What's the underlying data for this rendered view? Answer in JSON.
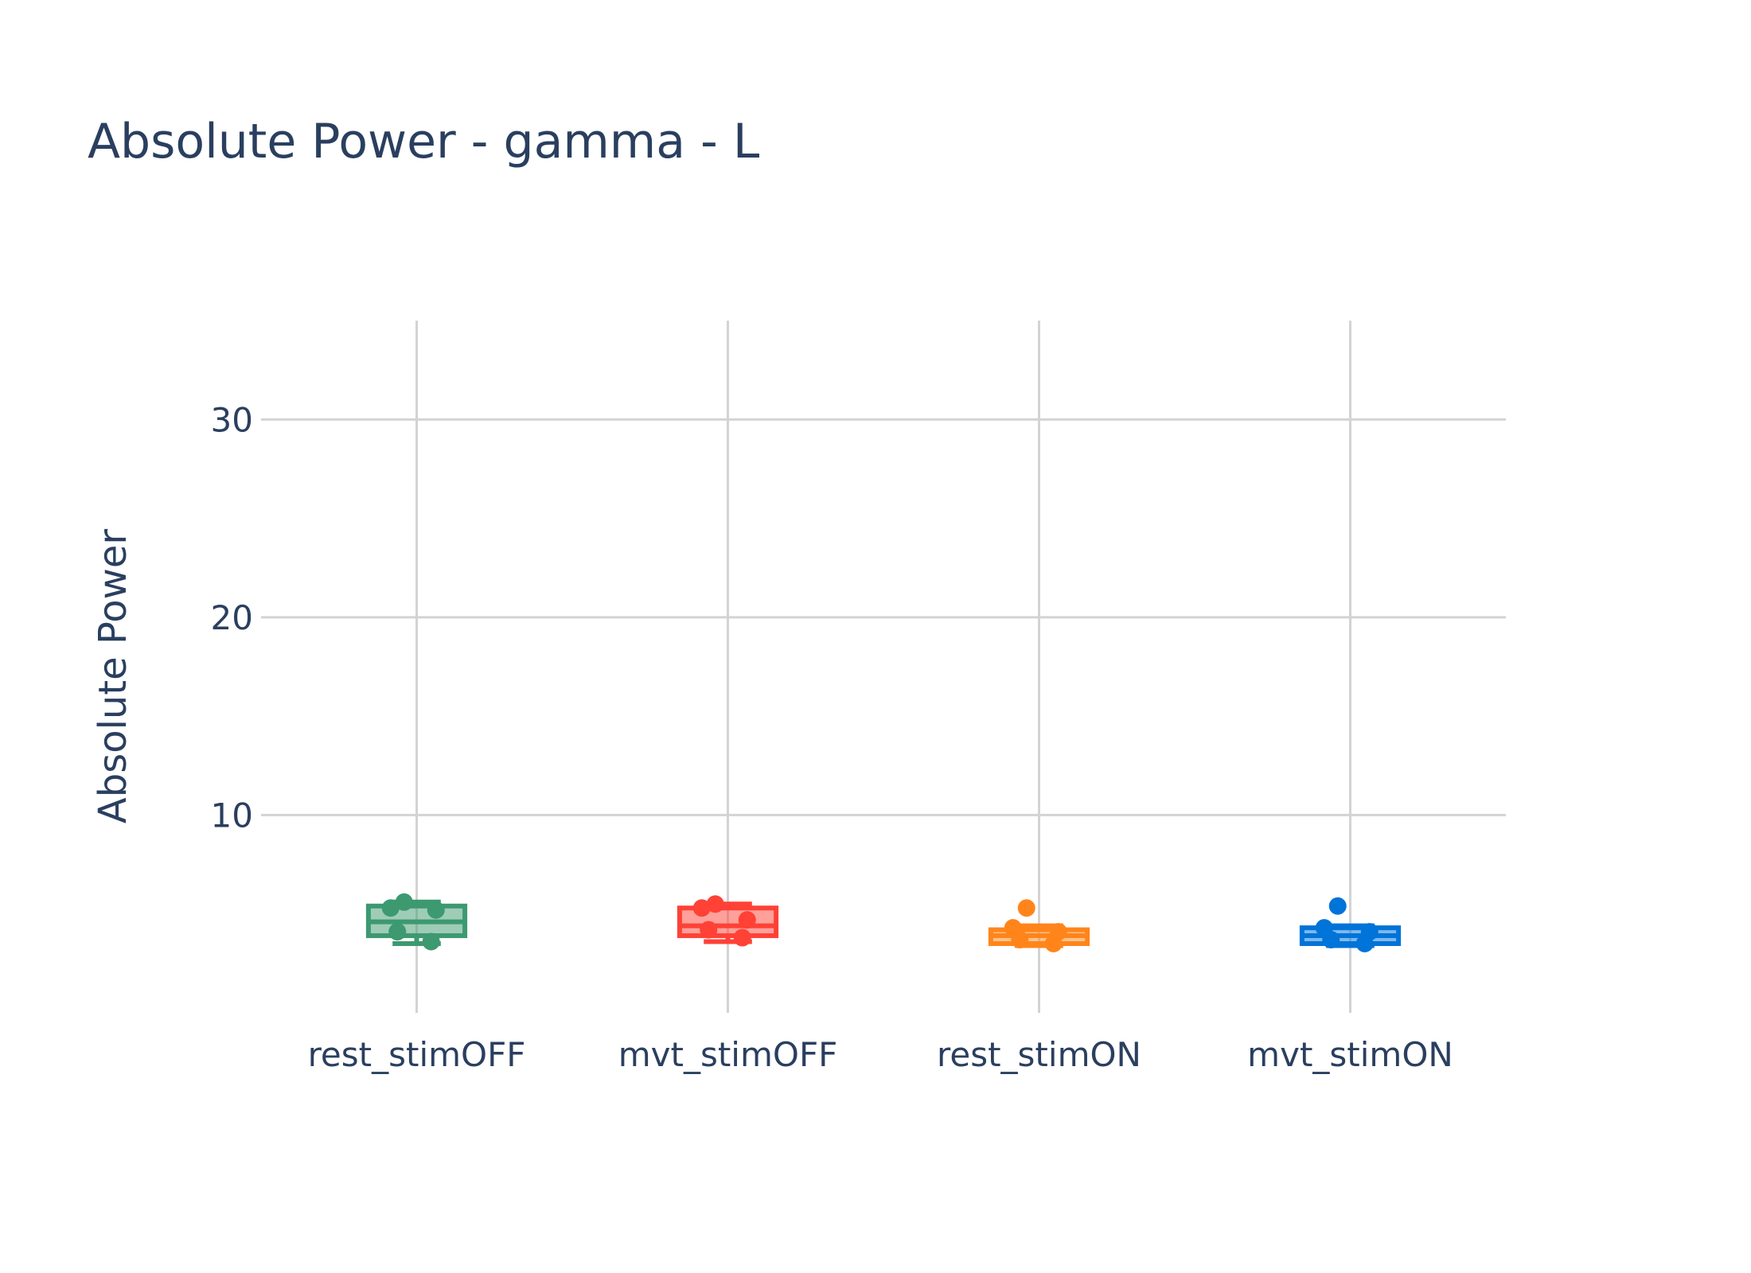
{
  "chart_data": {
    "type": "box",
    "title": "Absolute Power - gamma - L",
    "xlabel": "",
    "ylabel": "Absolute Power",
    "categories": [
      "rest_stimOFF",
      "mvt_stimOFF",
      "rest_stimON",
      "mvt_stimON"
    ],
    "y_ticks": [
      "10",
      "20",
      "30"
    ],
    "y_tick_values": [
      10,
      20,
      30
    ],
    "ylim": [
      0,
      35
    ],
    "grid": true,
    "legend": "none",
    "series": [
      {
        "category": "rest_stimOFF",
        "color": "#3d9970",
        "q1": 3.9,
        "median": 4.6,
        "q3": 5.4,
        "lowerfence": 3.5,
        "upperfence": 5.6,
        "points": [
          5.6,
          5.3,
          5.2,
          4.1,
          3.6
        ]
      },
      {
        "category": "mvt_stimOFF",
        "color": "#ff4136",
        "q1": 3.9,
        "median": 4.4,
        "q3": 5.3,
        "lowerfence": 3.6,
        "upperfence": 5.5,
        "points": [
          5.5,
          5.3,
          4.7,
          4.2,
          3.8
        ]
      },
      {
        "category": "rest_stimON",
        "color": "#ff851b",
        "q1": 3.5,
        "median": 3.9,
        "q3": 4.2,
        "lowerfence": 3.4,
        "upperfence": 4.4,
        "points": [
          5.3,
          4.3,
          4.1,
          3.7,
          3.5
        ]
      },
      {
        "category": "mvt_stimON",
        "color": "#0074d9",
        "q1": 3.5,
        "median": 3.9,
        "q3": 4.3,
        "lowerfence": 3.4,
        "upperfence": 4.4,
        "points": [
          5.4,
          4.3,
          4.1,
          3.7,
          3.5
        ]
      }
    ]
  }
}
